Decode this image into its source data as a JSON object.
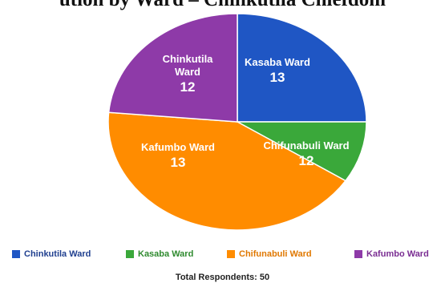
{
  "title_fragment": "ution by Ward – Chinkutila Chiefdom",
  "chart_data": {
    "type": "pie",
    "slices": [
      {
        "name": "Chinkutila Ward",
        "label_lines": [
          "Chinkutila",
          "Ward"
        ],
        "value": 12,
        "color": "#1f56c4"
      },
      {
        "name": "Kasaba Ward",
        "label_lines": [
          "Kasaba Ward"
        ],
        "value": 13,
        "color": "#3aa83a"
      },
      {
        "name": "Chifunabuli Ward",
        "label_lines": [
          "Chifunabuli Ward"
        ],
        "value": 12,
        "color": "#ff8c00"
      },
      {
        "name": "Kafumbo Ward",
        "label_lines": [
          "Kafumbo Ward"
        ],
        "value": 13,
        "color": "#8e3aa8"
      }
    ],
    "legend_placement": "bottom",
    "legend": [
      {
        "label": "Chinkutila Ward",
        "color": "#1f56c4",
        "text_color": "#1f3f8f"
      },
      {
        "label": "Kasaba Ward",
        "color": "#3aa83a",
        "text_color": "#2e8a2e"
      },
      {
        "label": "Chifunabuli Ward",
        "color": "#ff8c00",
        "text_color": "#e07800"
      },
      {
        "label": "Kafumbo Ward",
        "color": "#8e3aa8",
        "text_color": "#7a2d92"
      }
    ],
    "total_label": "Total Respondents: 50"
  }
}
